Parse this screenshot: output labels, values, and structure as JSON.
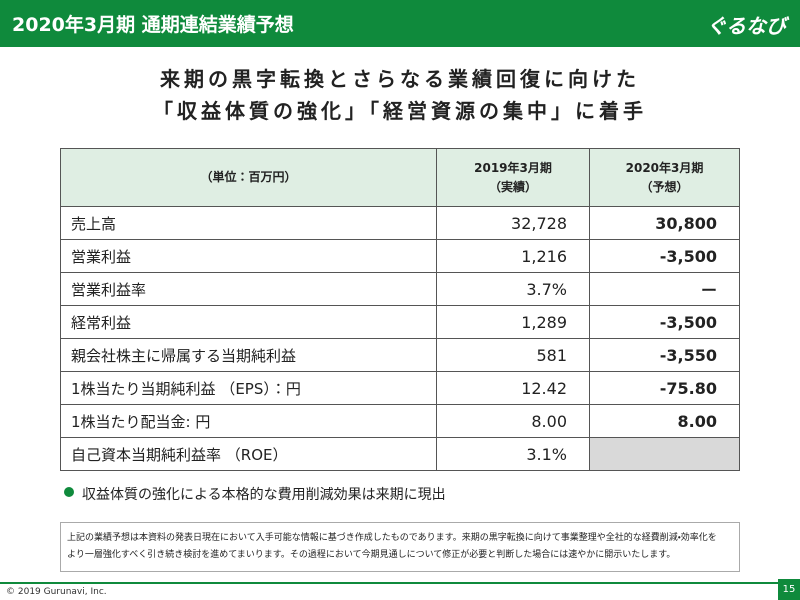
{
  "header": {
    "title": "2020年3月期 通期連結業績予想",
    "logo": "ぐるなび"
  },
  "headline": [
    "来期の黒字転換とさらなる業績回復に向けた",
    "「収益体質の強化」「経営資源の集中」に着手"
  ],
  "table": {
    "header": [
      [
        "（単位：百万円）"
      ],
      [
        "2019年3月期",
        "（実績）"
      ],
      [
        "2020年3月期",
        "（予想）"
      ]
    ],
    "rows": [
      [
        "売上高",
        "32,728",
        "30,800"
      ],
      [
        "営業利益",
        "1,216",
        "-3,500"
      ],
      [
        "営業利益率",
        "3.7%",
        "ー"
      ],
      [
        "経常利益",
        "1,289",
        "-3,500"
      ],
      [
        "親会社株主に帰属する当期純利益",
        "581",
        "-3,550"
      ],
      [
        "1株当たり当期純利益 （EPS）：円",
        "12.42",
        "-75.80"
      ],
      [
        "1株当たり配当金: 円",
        "8.00",
        "8.00"
      ],
      [
        "自己資本当期純利益率 （ROE）",
        "3.1%",
        null
      ]
    ]
  },
  "bullet": "収益体質の強化による本格的な費用削減効果は来期に現出",
  "note": [
    "上記の業績予想は本資料の発表日現在において入手可能な情報に基づき作成したものであります。来期の黒字転換に向けて事業整理や全社的な経費削減・効率化を",
    "より一層強化すべく引き続き検討を進めてまいります。その過程において今期見通しについて修正が必要と判断した場合には速やかに開示いたします。"
  ],
  "footer": {
    "copyright": "© 2019 Gurunavi, Inc.",
    "page": "15"
  }
}
